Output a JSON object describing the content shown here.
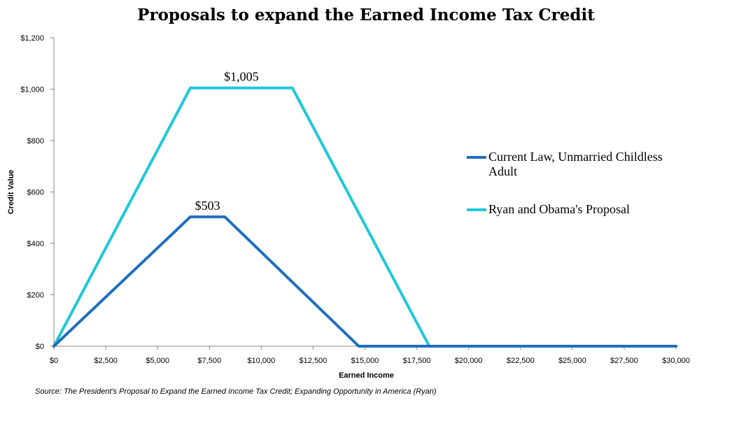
{
  "chart_data": {
    "type": "line",
    "title": "Proposals to expand the Earned Income Tax Credit",
    "xlabel": "Earned Income",
    "ylabel": "Credit Value",
    "xlim": [
      0,
      30000
    ],
    "ylim": [
      0,
      1200
    ],
    "x_ticks": [
      0,
      2500,
      5000,
      7500,
      10000,
      12500,
      15000,
      17500,
      20000,
      22500,
      25000,
      27500,
      30000
    ],
    "x_tick_labels": [
      "$0",
      "$2,500",
      "$5,000",
      "$7,500",
      "$10,000",
      "$12,500",
      "$15,000",
      "$17,500",
      "$20,000",
      "$22,500",
      "$25,000",
      "$27,500",
      "$30,000"
    ],
    "y_ticks": [
      0,
      200,
      400,
      600,
      800,
      1000,
      1200
    ],
    "y_tick_labels": [
      "$0",
      "$200",
      "$400",
      "$600",
      "$800",
      "$1,000",
      "$1,200"
    ],
    "legend_position": "right",
    "series": [
      {
        "name": "Current Law, Unmarried Childless Adult",
        "legend_lines": [
          "Current Law, Unmarried Childless",
          "Adult"
        ],
        "color": "#1f6fbf",
        "x": [
          0,
          6580,
          8240,
          14700,
          30000
        ],
        "values": [
          0,
          503,
          503,
          0,
          0
        ]
      },
      {
        "name": "Ryan and Obama's Proposal",
        "legend_lines": [
          "Ryan and Obama's Proposal"
        ],
        "color": "#1ec8d8",
        "x": [
          0,
          6580,
          11500,
          18100,
          30000
        ],
        "values": [
          0,
          1005,
          1005,
          0,
          0
        ]
      }
    ],
    "annotations": [
      {
        "text": "$1,005",
        "x": 9040,
        "y": 1005,
        "series": 1
      },
      {
        "text": "$503",
        "x": 7410,
        "y": 503,
        "series": 0
      }
    ]
  },
  "source_note": "Source:  The President's Proposal to Expand the Earned Income Tax Credit; Expanding Opportunity in America (Ryan)"
}
